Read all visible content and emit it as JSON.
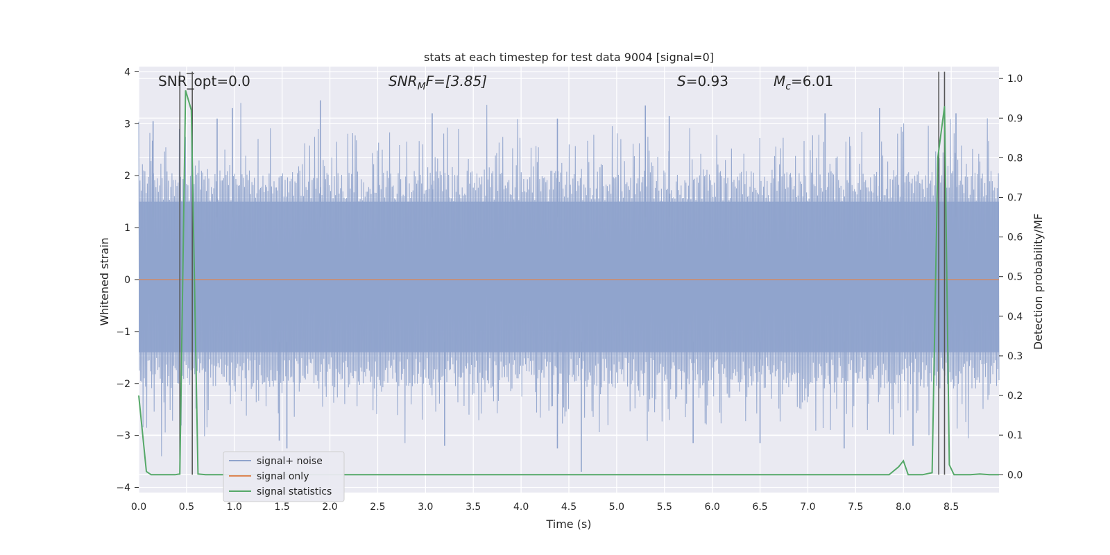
{
  "chart_data": {
    "type": "line",
    "title": "stats at each timestep for test data 9004 [signal=0]",
    "xlabel": "Time (s)",
    "ylabel": "Whitened strain",
    "y2label": "Detection probability/MF",
    "xlim": [
      0.0,
      9.0
    ],
    "ylim": [
      -4.1,
      4.1
    ],
    "y2lim": [
      -0.045,
      1.03
    ],
    "xticks": [
      "0.0",
      "0.5",
      "1.0",
      "1.5",
      "2.0",
      "2.5",
      "3.0",
      "3.5",
      "4.0",
      "4.5",
      "5.0",
      "5.5",
      "6.0",
      "6.5",
      "7.0",
      "7.5",
      "8.0",
      "8.5"
    ],
    "yticks": [
      "4",
      "3",
      "2",
      "1",
      "0",
      "−1",
      "−2",
      "−3",
      "−4"
    ],
    "y2ticks": [
      "1.0",
      "0.9",
      "0.8",
      "0.7",
      "0.6",
      "0.5",
      "0.4",
      "0.3",
      "0.2",
      "0.1",
      "0.0"
    ],
    "grid": true,
    "legend_position": "lower-left",
    "annotations": {
      "snr_opt": "SNR_opt=0.0",
      "snr_mf_base": "SNR",
      "snr_mf_sub": "M",
      "snr_mf_rest": "F=[3.85]",
      "s_sym": "S",
      "s_val": "=0.93",
      "mc_sym": "M",
      "mc_sub": "c",
      "mc_val": "=6.01"
    },
    "series": [
      {
        "name": "signal+ noise",
        "color": "#8fa3cc",
        "axis": "left",
        "envelope_note": "dense noise, mostly within ±1.7 with spikes up to ±3.5",
        "peaks": [
          {
            "x": 0.15,
            "y": 3.05
          },
          {
            "x": 0.82,
            "y": 3.1
          },
          {
            "x": 0.98,
            "y": 3.3
          },
          {
            "x": 1.9,
            "y": 3.45
          },
          {
            "x": 3.07,
            "y": 3.2
          },
          {
            "x": 4.38,
            "y": 3.1
          },
          {
            "x": 5.3,
            "y": 3.35
          },
          {
            "x": 5.55,
            "y": 3.15
          },
          {
            "x": 7.18,
            "y": 3.2
          },
          {
            "x": 7.75,
            "y": 3.3
          },
          {
            "x": 8.55,
            "y": 3.2
          }
        ],
        "troughs": [
          {
            "x": 1.47,
            "y": -3.1
          },
          {
            "x": 1.55,
            "y": -3.25
          },
          {
            "x": 3.2,
            "y": -3.2
          },
          {
            "x": 4.38,
            "y": -3.25
          },
          {
            "x": 4.63,
            "y": -3.7
          },
          {
            "x": 5.8,
            "y": -3.15
          },
          {
            "x": 6.5,
            "y": -3.15
          },
          {
            "x": 7.38,
            "y": -3.25
          },
          {
            "x": 8.1,
            "y": -3.2
          }
        ]
      },
      {
        "name": "signal only",
        "color": "#dd8452",
        "axis": "left",
        "x": [
          0.0,
          9.0
        ],
        "y": [
          0.0,
          0.0
        ]
      },
      {
        "name": "signal statistics",
        "color": "#55a868",
        "axis": "right",
        "x": [
          0.0,
          0.08,
          0.13,
          0.25,
          0.38,
          0.43,
          0.49,
          0.55,
          0.62,
          0.7,
          1.0,
          2.0,
          3.0,
          4.0,
          5.0,
          6.0,
          7.0,
          7.85,
          7.95,
          8.0,
          8.05,
          8.2,
          8.3,
          8.36,
          8.43,
          8.48,
          8.53,
          8.6,
          8.7,
          8.8,
          8.9,
          9.0
        ],
        "y": [
          0.2,
          0.008,
          0.0,
          0.0,
          0.0,
          0.002,
          0.97,
          0.92,
          0.002,
          0.0,
          0.0,
          0.0,
          0.0,
          0.0,
          0.0,
          0.0,
          0.0,
          0.0,
          0.02,
          0.035,
          0.0,
          0.0,
          0.005,
          0.8,
          0.93,
          0.025,
          0.0,
          0.0,
          0.0,
          0.002,
          0.0,
          0.0
        ]
      }
    ],
    "markers": {
      "color": "#555555",
      "vertical_lines": [
        {
          "x": 0.43,
          "y_top": 4.0
        },
        {
          "x": 0.56,
          "y_top": 4.0
        },
        {
          "x": 8.37,
          "y_top": 4.0
        },
        {
          "x": 8.43,
          "y_top": 4.0
        }
      ],
      "horizontal_segment": {
        "x0": 0.5,
        "x1": 0.58,
        "y": 3.97
      }
    }
  }
}
